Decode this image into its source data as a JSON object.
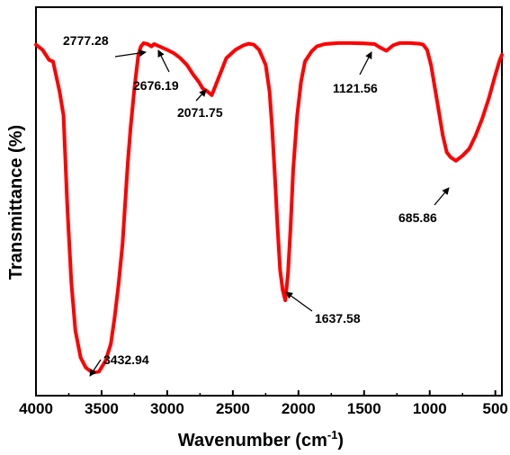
{
  "chart_data": {
    "type": "line",
    "xlabel": "Wavenumber (cm",
    "xlabel_sup": "-1",
    "xlabel_tail": ")",
    "ylabel": "Transmittance (%)",
    "xlim": [
      4000,
      450
    ],
    "x_ticks": [
      4000,
      3500,
      3000,
      2500,
      2000,
      1500,
      1000,
      500
    ],
    "y_ticks_shown": false,
    "ylim": [
      0,
      100
    ],
    "line_color": "#ff0000",
    "series": [
      {
        "x": [
          4000,
          3950,
          3900,
          3870,
          3820,
          3790,
          3760,
          3730,
          3700,
          3660,
          3620,
          3570,
          3520,
          3470,
          3430,
          3400,
          3370,
          3340,
          3320,
          3300,
          3280,
          3250,
          3220,
          3200,
          3180,
          3150,
          3120,
          3100,
          3060,
          3000,
          2950,
          2900,
          2850,
          2800,
          2760,
          2730,
          2690,
          2660,
          2640,
          2600,
          2550,
          2480,
          2420,
          2380,
          2340,
          2300,
          2250,
          2220,
          2200,
          2180,
          2160,
          2140,
          2120,
          2100,
          2080,
          2060,
          2040,
          2010,
          1980,
          1950,
          1900,
          1860,
          1800,
          1700,
          1600,
          1500,
          1420,
          1380,
          1330,
          1280,
          1230,
          1150,
          1080,
          1050,
          1020,
          990,
          960,
          930,
          900,
          870,
          840,
          800,
          750,
          700,
          650,
          600,
          550,
          500,
          470,
          450
        ],
        "y": [
          99,
          97.5,
          94.5,
          94,
          85,
          78,
          50,
          28,
          14,
          6,
          3,
          1.5,
          1.8,
          5,
          10,
          18,
          28,
          40,
          52,
          64,
          74,
          86,
          96,
          98.5,
          99.5,
          99.2,
          98.5,
          99.2,
          98.5,
          97.5,
          96.5,
          95,
          93,
          90,
          88,
          86,
          85,
          84,
          86,
          90,
          95,
          97.5,
          98.8,
          99.3,
          99,
          97.5,
          93,
          85,
          74,
          60,
          45,
          32,
          26,
          23,
          31,
          45,
          62,
          78,
          88,
          94,
          97,
          98.5,
          99.2,
          99.5,
          99.5,
          99.4,
          99.2,
          98.2,
          97.2,
          98.8,
          99.5,
          99.5,
          99.3,
          99,
          97.5,
          93,
          86,
          79,
          72,
          67,
          65.5,
          64.5,
          66,
          68,
          72,
          77,
          83,
          90,
          94,
          96
        ]
      }
    ],
    "annotations": [
      {
        "label": "2777.28",
        "x": 2777.28
      },
      {
        "label": "2676.19",
        "x": 2676.19
      },
      {
        "label": "2071.75",
        "x": 2071.75
      },
      {
        "label": "1121.56",
        "x": 1121.56
      },
      {
        "label": "685.86",
        "x": 685.86
      },
      {
        "label": "1637.58",
        "x": 1637.58
      },
      {
        "label": "3432.94",
        "x": 3432.94
      }
    ]
  }
}
